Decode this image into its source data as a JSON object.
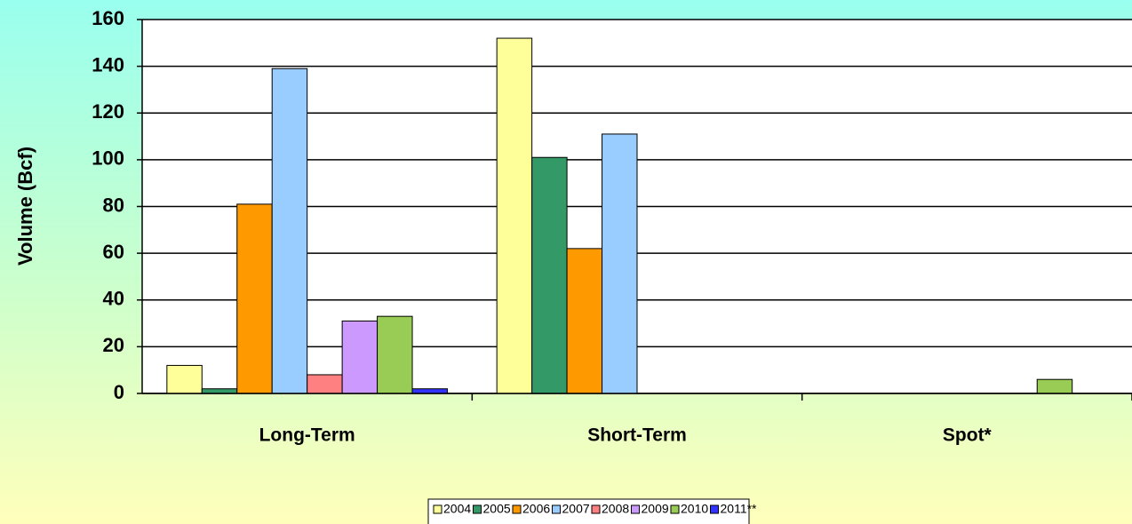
{
  "chart_data": {
    "type": "bar",
    "y_label": "Volume (Bcf)",
    "categories": [
      "Long-Term",
      "Short-Term",
      "Spot*"
    ],
    "series": [
      {
        "name": "2004",
        "color": "#ffff99",
        "values": [
          12,
          152,
          0
        ]
      },
      {
        "name": "2005",
        "color": "#339966",
        "values": [
          2,
          101,
          0
        ]
      },
      {
        "name": "2006",
        "color": "#ff9900",
        "values": [
          81,
          62,
          0
        ]
      },
      {
        "name": "2007",
        "color": "#99ccff",
        "values": [
          139,
          111,
          0
        ]
      },
      {
        "name": "2008",
        "color": "#ff8080",
        "values": [
          8,
          0,
          0
        ]
      },
      {
        "name": "2009",
        "color": "#cc99ff",
        "values": [
          31,
          0,
          0
        ]
      },
      {
        "name": "2010",
        "color": "#99cc55",
        "values": [
          33,
          0,
          6
        ]
      },
      {
        "name": "2011**",
        "color": "#3333ff",
        "values": [
          2,
          0,
          0
        ]
      }
    ],
    "ylim": [
      0,
      160
    ],
    "yticks": [
      0,
      20,
      40,
      60,
      80,
      100,
      120,
      140,
      160
    ],
    "grid": true,
    "legend": "bottom"
  }
}
